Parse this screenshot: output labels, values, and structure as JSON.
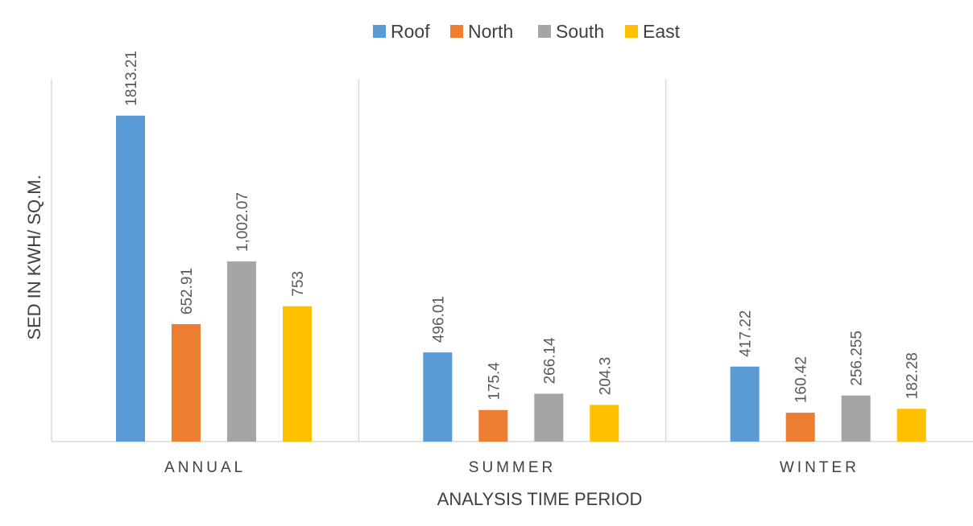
{
  "chart_data": {
    "type": "bar",
    "categories": [
      "ANNUAL",
      "SUMMER",
      "WINTER"
    ],
    "series": [
      {
        "name": "Roof",
        "color": "#5b9bd5",
        "values": [
          1813.21,
          496.01,
          417.22
        ],
        "labels": [
          "1813.21",
          "496.01",
          "417.22"
        ]
      },
      {
        "name": "North",
        "color": "#ed7d31",
        "values": [
          652.91,
          175.4,
          160.42
        ],
        "labels": [
          "652.91",
          "175.4",
          "160.42"
        ]
      },
      {
        "name": "South",
        "color": "#a5a5a5",
        "values": [
          1002.07,
          266.14,
          256.255
        ],
        "labels": [
          "1,002.07",
          "266.14",
          "256.255"
        ]
      },
      {
        "name": "East",
        "color": "#ffc000",
        "values": [
          753,
          204.3,
          182.28
        ],
        "labels": [
          "753",
          "204.3",
          "182.28"
        ]
      }
    ],
    "xlabel": "ANALYSIS TIME PERIOD",
    "ylabel": "SED IN KWH/ SQ.M.",
    "ylim": [
      0,
      2000
    ],
    "grid": false,
    "legend": "top-center",
    "category_separators": true
  }
}
